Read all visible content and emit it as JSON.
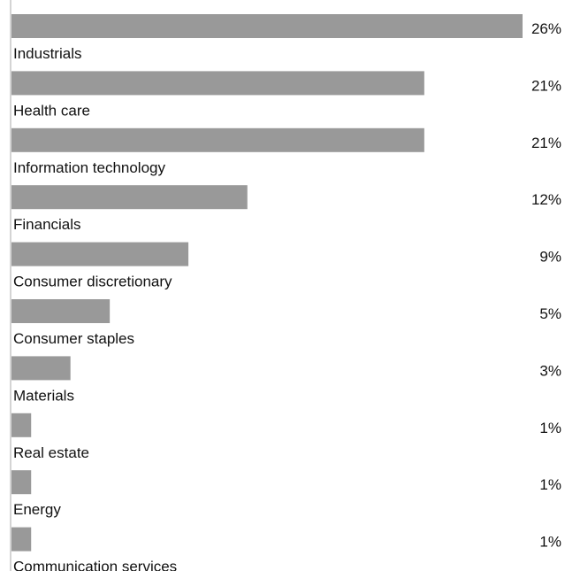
{
  "chart_data": {
    "type": "bar",
    "orientation": "horizontal",
    "categories": [
      "Industrials",
      "Health care",
      "Information technology",
      "Financials",
      "Consumer discretionary",
      "Consumer staples",
      "Materials",
      "Real estate",
      "Energy",
      "Communication services"
    ],
    "values": [
      26,
      21,
      21,
      12,
      9,
      5,
      3,
      1,
      1,
      1
    ],
    "value_labels": [
      "26%",
      "21%",
      "21%",
      "12%",
      "9%",
      "5%",
      "3%",
      "1%",
      "1%",
      "1%"
    ],
    "unit": "%",
    "bar_color": "#999999",
    "grid": false,
    "legend": "none",
    "xlim": [
      0,
      26
    ]
  }
}
